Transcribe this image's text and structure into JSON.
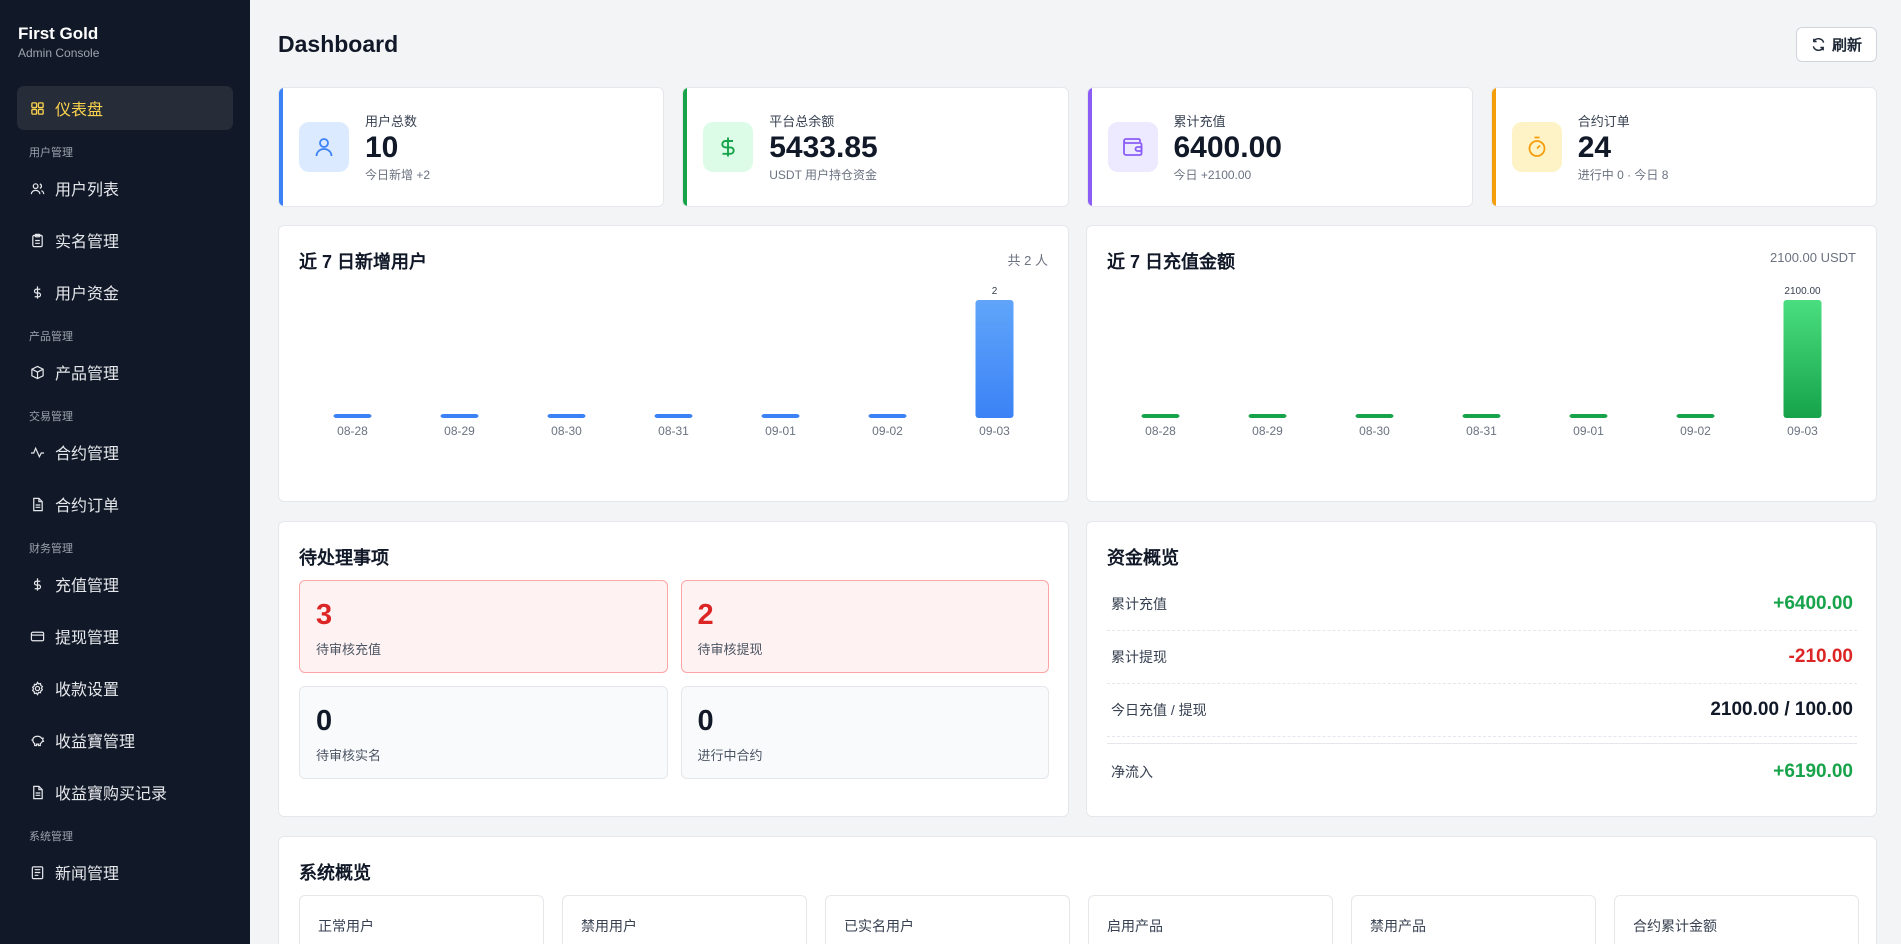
{
  "brand": {
    "title": "First Gold",
    "subtitle": "Admin Console"
  },
  "sidebar": {
    "dashboard": "仪表盘",
    "groups": [
      {
        "label": "用户管理",
        "items": [
          {
            "label": "用户列表",
            "icon": "users-icon"
          },
          {
            "label": "实名管理",
            "icon": "clipboard-icon"
          },
          {
            "label": "用户资金",
            "icon": "dollar-icon"
          }
        ]
      },
      {
        "label": "产品管理",
        "items": [
          {
            "label": "产品管理",
            "icon": "box-icon"
          }
        ]
      },
      {
        "label": "交易管理",
        "items": [
          {
            "label": "合约管理",
            "icon": "activity-icon"
          },
          {
            "label": "合约订单",
            "icon": "file-icon"
          }
        ]
      },
      {
        "label": "财务管理",
        "items": [
          {
            "label": "充值管理",
            "icon": "dollar-icon"
          },
          {
            "label": "提现管理",
            "icon": "card-icon"
          },
          {
            "label": "收款设置",
            "icon": "gear-icon"
          },
          {
            "label": "收益寶管理",
            "icon": "piggy-icon"
          },
          {
            "label": "收益寶购买记录",
            "icon": "file-icon"
          }
        ]
      },
      {
        "label": "系统管理",
        "items": [
          {
            "label": "新闻管理",
            "icon": "news-icon"
          }
        ]
      }
    ]
  },
  "header": {
    "title": "Dashboard",
    "refresh_label": "刷新"
  },
  "stats": [
    {
      "label": "用户总数",
      "value": "10",
      "sub": "今日新增 +2",
      "color": "#3b82f6",
      "bg": "#dbeafe",
      "icon": "user-icon"
    },
    {
      "label": "平台总余额",
      "value": "5433.85",
      "sub": "USDT 用户持仓资金",
      "color": "#16a34a",
      "bg": "#dcfce7",
      "icon": "dollar-icon"
    },
    {
      "label": "累计充值",
      "value": "6400.00",
      "sub": "今日 +2100.00",
      "color": "#8b5cf6",
      "bg": "#ede9fe",
      "icon": "wallet-icon"
    },
    {
      "label": "合约订单",
      "value": "24",
      "sub": "进行中 0 · 今日 8",
      "color": "#f59e0b",
      "bg": "#fef3c7",
      "icon": "timer-icon"
    }
  ],
  "users_chart": {
    "title": "近 7 日新增用户",
    "note": "共 2 人"
  },
  "recharge_chart": {
    "title": "近 7 日充值金额",
    "note": "2100.00 USDT"
  },
  "chart_data": [
    {
      "type": "bar",
      "title": "近 7 日新增用户",
      "categories": [
        "08-28",
        "08-29",
        "08-30",
        "08-31",
        "09-01",
        "09-02",
        "09-03"
      ],
      "values": [
        0,
        0,
        0,
        0,
        0,
        0,
        2
      ],
      "value_labels": [
        "",
        "",
        "",
        "",
        "",
        "",
        "2"
      ],
      "colors": [
        "#60a5fa",
        "#3b82f6"
      ]
    },
    {
      "type": "bar",
      "title": "近 7 日充值金额",
      "categories": [
        "08-28",
        "08-29",
        "08-30",
        "08-31",
        "09-01",
        "09-02",
        "09-03"
      ],
      "values": [
        0,
        0,
        0,
        0,
        0,
        0,
        2100
      ],
      "value_labels": [
        "",
        "",
        "",
        "",
        "",
        "",
        "2100.00"
      ],
      "colors": [
        "#4ade80",
        "#16a34a"
      ]
    }
  ],
  "pending": {
    "title": "待处理事项",
    "items": [
      {
        "value": "3",
        "label": "待审核充值"
      },
      {
        "value": "2",
        "label": "待审核提现"
      },
      {
        "value": "0",
        "label": "待审核实名"
      },
      {
        "value": "0",
        "label": "进行中合约"
      }
    ]
  },
  "funds": {
    "title": "资金概览",
    "rows": [
      {
        "label": "累计充值",
        "value": "+6400.00"
      },
      {
        "label": "累计提现",
        "value": "-210.00"
      },
      {
        "label": "今日充值 / 提现",
        "value": "2100.00 / 100.00"
      },
      {
        "label": "净流入",
        "value": "+6190.00"
      }
    ]
  },
  "system": {
    "title": "系统概览",
    "items": [
      "正常用户",
      "禁用用户",
      "已实名用户",
      "启用产品",
      "禁用产品",
      "合约累计金额"
    ]
  }
}
